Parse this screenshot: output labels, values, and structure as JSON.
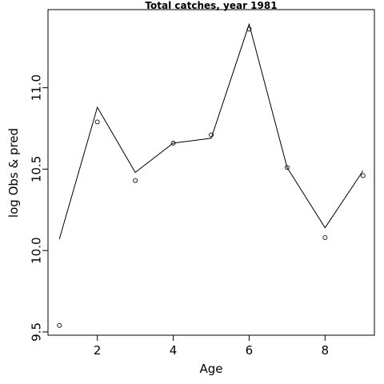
{
  "chart_data": {
    "type": "line",
    "title": "Total catches, year 1981",
    "xlabel": "Age",
    "ylabel": "log Obs & pred",
    "xlim": [
      0.7,
      9.3
    ],
    "ylim": [
      9.48,
      11.48
    ],
    "xticks": [
      2,
      4,
      6,
      8
    ],
    "xtick_labels": [
      "2",
      "4",
      "6",
      "8"
    ],
    "yticks": [
      9.5,
      10.0,
      10.5,
      11.0
    ],
    "ytick_labels": [
      "9.5",
      "10.0",
      "10.5",
      "11.0"
    ],
    "grid": false,
    "series": [
      {
        "style": "points",
        "marker": "open-circle",
        "x": [
          1,
          2,
          3,
          4,
          5,
          6,
          7,
          8,
          9
        ],
        "values": [
          9.54,
          10.79,
          10.43,
          10.66,
          10.71,
          11.36,
          10.51,
          10.08,
          10.46
        ]
      },
      {
        "style": "line",
        "x": [
          1,
          2,
          3,
          4,
          5,
          6,
          7,
          8,
          9
        ],
        "values": [
          10.07,
          10.88,
          10.48,
          10.66,
          10.69,
          11.39,
          10.51,
          10.14,
          10.49
        ]
      }
    ]
  }
}
